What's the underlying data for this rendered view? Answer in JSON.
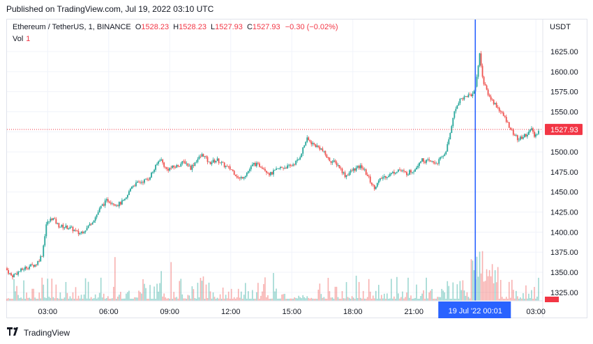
{
  "published": "Published on TradingView.com, Jul 19, 2022 03:10 UTC",
  "legend": {
    "symbol": "Ethereum / TetherUS, 1, BINANCE",
    "open_label": "O",
    "open": "1528.23",
    "high_label": "H",
    "high": "1528.23",
    "low_label": "L",
    "low": "1527.93",
    "close_label": "C",
    "close": "1527.93",
    "change": "−0.30 (−0.02%)",
    "vol_label": "Vol",
    "vol_value": "1"
  },
  "currency": "USDT",
  "footer": {
    "brand": "TradingView",
    "logo_icon": "tradingview-logo-icon"
  },
  "colors": {
    "up": "#26a69a",
    "down": "#ef5350",
    "price_tag": "#f23645",
    "crosshair": "#2962ff",
    "grid": "#f0f3fa",
    "text": "#131722"
  },
  "chart_data": {
    "type": "candlestick",
    "y_axis": {
      "min": 1310,
      "max": 1635,
      "ticks": [
        1625,
        1600,
        1575,
        1550,
        1525,
        1500,
        1475,
        1450,
        1425,
        1400,
        1375,
        1350,
        1325
      ]
    },
    "y_tick_labels": [
      "1625.00",
      "1600.00",
      "1575.00",
      "1550.00",
      "1525.00",
      "1500.00",
      "1475.00",
      "1450.00",
      "1425.00",
      "1400.00",
      "1375.00",
      "1350.00",
      "1325.00"
    ],
    "x_axis": {
      "start": "01:00",
      "end": "03:05",
      "unit": "hours"
    },
    "x_ticks": [
      {
        "label": "03:00",
        "t": 3
      },
      {
        "label": "06:00",
        "t": 6
      },
      {
        "label": "09:00",
        "t": 9
      },
      {
        "label": "12:00",
        "t": 12
      },
      {
        "label": "15:00",
        "t": 15
      },
      {
        "label": "18:00",
        "t": 18
      },
      {
        "label": "21:00",
        "t": 21
      },
      {
        "label": "03:00",
        "t": 27
      }
    ],
    "crosshair": {
      "t": 24.02,
      "label": "19 Jul '22   00:01"
    },
    "last_price": 1527.93,
    "last_price_label": "1527.93",
    "price_path": [
      [
        1.0,
        1355
      ],
      [
        1.3,
        1345
      ],
      [
        1.6,
        1350
      ],
      [
        2.0,
        1356
      ],
      [
        2.5,
        1360
      ],
      [
        2.8,
        1372
      ],
      [
        3.0,
        1410
      ],
      [
        3.3,
        1418
      ],
      [
        3.6,
        1408
      ],
      [
        4.2,
        1405
      ],
      [
        4.6,
        1398
      ],
      [
        5.0,
        1405
      ],
      [
        5.4,
        1418
      ],
      [
        5.7,
        1432
      ],
      [
        6.0,
        1440
      ],
      [
        6.5,
        1434
      ],
      [
        6.9,
        1440
      ],
      [
        7.2,
        1458
      ],
      [
        7.6,
        1462
      ],
      [
        8.0,
        1466
      ],
      [
        8.3,
        1478
      ],
      [
        8.6,
        1492
      ],
      [
        8.9,
        1478
      ],
      [
        9.4,
        1482
      ],
      [
        9.8,
        1488
      ],
      [
        10.1,
        1480
      ],
      [
        10.4,
        1490
      ],
      [
        10.7,
        1497
      ],
      [
        11.0,
        1486
      ],
      [
        11.4,
        1490
      ],
      [
        11.8,
        1482
      ],
      [
        12.1,
        1478
      ],
      [
        12.5,
        1466
      ],
      [
        12.8,
        1472
      ],
      [
        13.2,
        1485
      ],
      [
        13.6,
        1482
      ],
      [
        14.0,
        1472
      ],
      [
        14.5,
        1480
      ],
      [
        15.0,
        1482
      ],
      [
        15.4,
        1490
      ],
      [
        15.8,
        1516
      ],
      [
        16.1,
        1510
      ],
      [
        16.5,
        1504
      ],
      [
        16.9,
        1490
      ],
      [
        17.3,
        1485
      ],
      [
        17.7,
        1470
      ],
      [
        18.1,
        1478
      ],
      [
        18.5,
        1482
      ],
      [
        18.8,
        1470
      ],
      [
        19.1,
        1455
      ],
      [
        19.5,
        1468
      ],
      [
        19.9,
        1472
      ],
      [
        20.3,
        1478
      ],
      [
        20.7,
        1473
      ],
      [
        21.1,
        1478
      ],
      [
        21.4,
        1490
      ],
      [
        21.8,
        1488
      ],
      [
        22.2,
        1486
      ],
      [
        22.6,
        1498
      ],
      [
        22.8,
        1515
      ],
      [
        23.0,
        1545
      ],
      [
        23.3,
        1565
      ],
      [
        23.7,
        1570
      ],
      [
        24.0,
        1572
      ],
      [
        24.15,
        1590
      ],
      [
        24.3,
        1622
      ],
      [
        24.5,
        1585
      ],
      [
        24.8,
        1568
      ],
      [
        25.2,
        1555
      ],
      [
        25.6,
        1540
      ],
      [
        25.9,
        1525
      ],
      [
        26.2,
        1515
      ],
      [
        26.6,
        1522
      ],
      [
        26.9,
        1528
      ],
      [
        27.0,
        1518
      ],
      [
        27.2,
        1528
      ]
    ]
  }
}
